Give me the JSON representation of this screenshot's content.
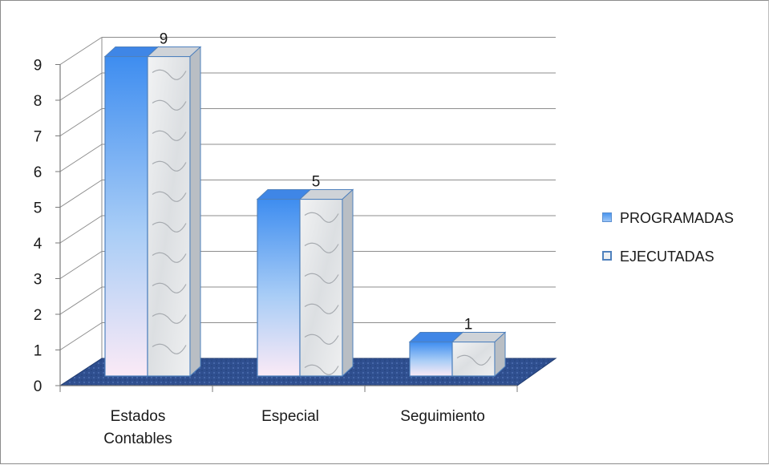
{
  "chart_data": {
    "type": "bar",
    "title": "",
    "xlabel": "",
    "ylabel": "",
    "categories": [
      [
        "Estados",
        "Contables"
      ],
      [
        "Especial"
      ],
      [
        "Seguimiento"
      ]
    ],
    "series": [
      {
        "name": "PROGRAMADAS",
        "values": [
          9,
          5,
          1
        ],
        "color": "#4a95ee"
      },
      {
        "name": "EJECUTADAS",
        "values": [
          9,
          5,
          1
        ],
        "color": "#e6e8ea"
      }
    ],
    "data_labels": [
      "9",
      "5",
      "1"
    ],
    "y_ticks": [
      "0",
      "1",
      "2",
      "3",
      "4",
      "5",
      "6",
      "7",
      "8",
      "9"
    ],
    "ylim": [
      0,
      9
    ],
    "grid": true,
    "legend_position": "right",
    "floor_color": "#2f4f8f"
  }
}
